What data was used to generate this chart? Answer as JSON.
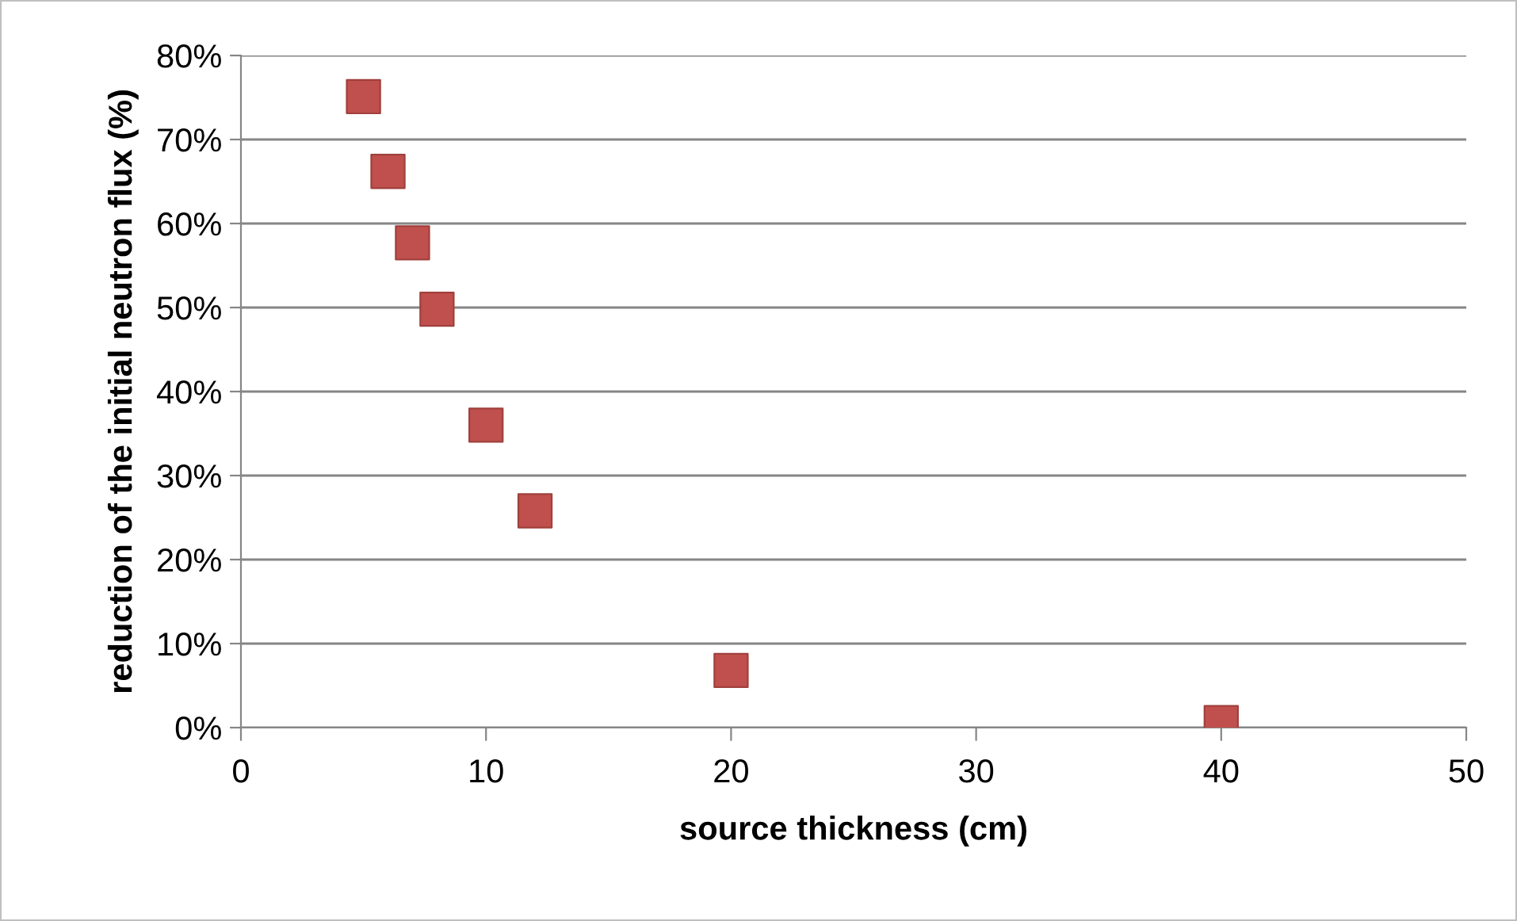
{
  "chart_data": {
    "type": "scatter",
    "xlabel": "source thickness (cm)",
    "ylabel": "reduction of the initial neutron flux (%)",
    "x": [
      5,
      6,
      7,
      8,
      10,
      12,
      20,
      40
    ],
    "values": [
      75.1,
      66.2,
      57.7,
      49.8,
      36.0,
      25.8,
      6.8,
      0.6
    ],
    "color": "#c0504d",
    "marker": "square",
    "grid": "y",
    "legend": false,
    "xlim": [
      0,
      50
    ],
    "xticks": [
      0,
      10,
      20,
      30,
      40,
      50
    ],
    "ylim": [
      0,
      80
    ],
    "yticks": [
      {
        "value": 0,
        "label": "0%"
      },
      {
        "value": 10,
        "label": "10%"
      },
      {
        "value": 20,
        "label": "20%"
      },
      {
        "value": 30,
        "label": "30%"
      },
      {
        "value": 40,
        "label": "40%"
      },
      {
        "value": 50,
        "label": "50%"
      },
      {
        "value": 60,
        "label": "60%"
      },
      {
        "value": 70,
        "label": "70%"
      },
      {
        "value": 80,
        "label": "80%"
      }
    ]
  }
}
